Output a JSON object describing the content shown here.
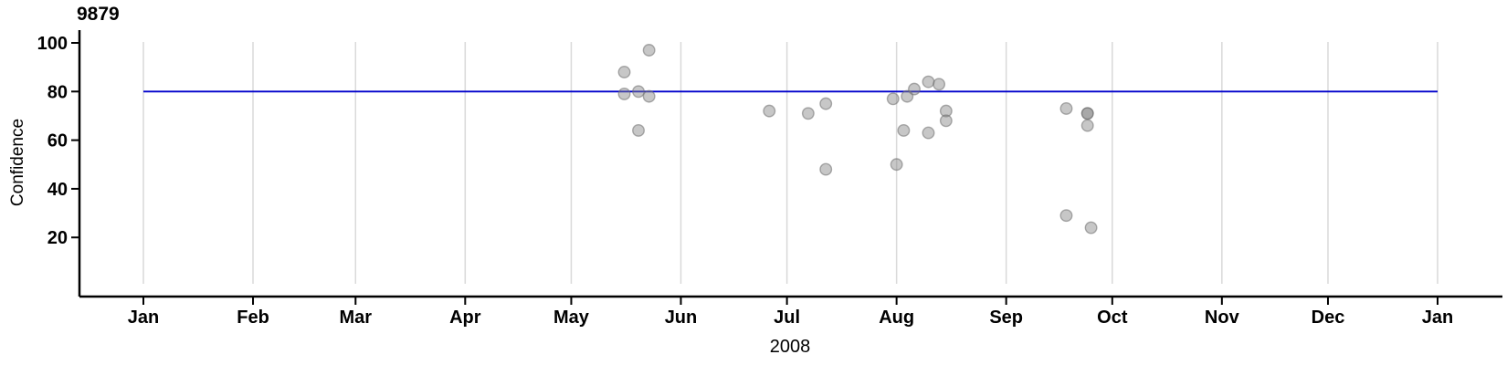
{
  "chart_data": {
    "type": "scatter",
    "title": "9879",
    "xlabel": "2008",
    "ylabel": "Confidence",
    "x_axis": {
      "year": "2008",
      "tick_labels": [
        "Jan",
        "Feb",
        "Mar",
        "Apr",
        "May",
        "Jun",
        "Jul",
        "Aug",
        "Sep",
        "Oct",
        "Nov",
        "Dec",
        "Jan"
      ],
      "days_per_month": [
        31,
        29,
        31,
        30,
        31,
        30,
        31,
        31,
        30,
        31,
        30,
        31
      ],
      "total_days": 366
    },
    "y_axis": {
      "label": "Confidence",
      "ticks": [
        20,
        40,
        60,
        80,
        100
      ],
      "range": [
        0,
        101
      ]
    },
    "reference_line": {
      "value": 80
    },
    "legend": "none",
    "grid": "vertical month gridlines",
    "points": [
      {
        "day": 136,
        "value": 88
      },
      {
        "day": 136,
        "value": 79
      },
      {
        "day": 140,
        "value": 80
      },
      {
        "day": 143,
        "value": 78
      },
      {
        "day": 143,
        "value": 97
      },
      {
        "day": 140,
        "value": 64
      },
      {
        "day": 177,
        "value": 72
      },
      {
        "day": 188,
        "value": 71
      },
      {
        "day": 193,
        "value": 75
      },
      {
        "day": 193,
        "value": 48
      },
      {
        "day": 212,
        "value": 77
      },
      {
        "day": 216,
        "value": 78
      },
      {
        "day": 218,
        "value": 81
      },
      {
        "day": 222,
        "value": 84
      },
      {
        "day": 225,
        "value": 83
      },
      {
        "day": 227,
        "value": 72
      },
      {
        "day": 227,
        "value": 68
      },
      {
        "day": 215,
        "value": 64
      },
      {
        "day": 222,
        "value": 63
      },
      {
        "day": 213,
        "value": 50
      },
      {
        "day": 261,
        "value": 73
      },
      {
        "day": 267,
        "value": 71
      },
      {
        "day": 267,
        "value": 71
      },
      {
        "day": 267,
        "value": 66
      },
      {
        "day": 261,
        "value": 29
      },
      {
        "day": 268,
        "value": 24
      }
    ]
  },
  "colors": {
    "reference_line": "#0000CC",
    "point_fill": "#828282",
    "point_stroke": "#6E6E6E",
    "gridline": "#D9D9D9",
    "axis": "#000000",
    "text": "#000000",
    "background": "#FFFFFF"
  }
}
